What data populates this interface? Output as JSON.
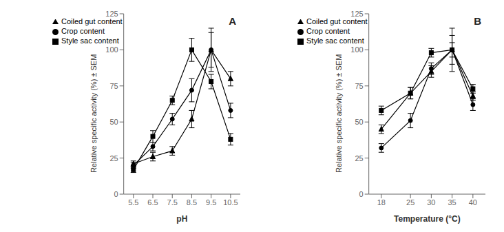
{
  "chart_data": [
    {
      "type": "line",
      "annotation": "A",
      "xlabel": "pH",
      "ylabel": "Relative specific activity (%) ± SEM",
      "x": [
        5.5,
        6.5,
        7.5,
        8.5,
        9.5,
        10.5
      ],
      "xlim": [
        5.0,
        11.0
      ],
      "xticks": [
        5.5,
        6.5,
        7.5,
        8.5,
        9.5,
        10.5
      ],
      "ylim": [
        0,
        125
      ],
      "yticks": [
        0,
        25,
        50,
        75,
        100,
        125
      ],
      "legend": "upper left",
      "grid": false,
      "color": "black",
      "series": [
        {
          "name": "Crop content",
          "marker": "circle",
          "values": [
            20,
            33,
            52,
            72,
            100,
            58
          ],
          "yerr": [
            2,
            3,
            4,
            8,
            12,
            5
          ]
        },
        {
          "name": "Style sac content",
          "marker": "square",
          "values": [
            17,
            40,
            65,
            100,
            78,
            38
          ],
          "yerr": [
            2,
            4,
            3,
            8,
            5,
            4
          ]
        },
        {
          "name": "Coiled gut content",
          "marker": "triangle",
          "values": [
            21,
            26,
            30,
            52,
            100,
            80
          ],
          "yerr": [
            2,
            3,
            3,
            6,
            15,
            5
          ]
        }
      ]
    },
    {
      "type": "line",
      "annotation": "B",
      "xlabel": "Temperature (°C)",
      "ylabel": "Relative specific activity (%) ± SEM",
      "x": [
        18,
        25,
        30,
        35,
        40
      ],
      "xlim": [
        15,
        43
      ],
      "xticks": [
        18,
        25,
        30,
        35,
        40
      ],
      "ylim": [
        0,
        125
      ],
      "yticks": [
        0,
        25,
        50,
        75,
        100,
        125
      ],
      "legend": "upper left",
      "grid": false,
      "color": "black",
      "series": [
        {
          "name": "Crop content",
          "marker": "circle",
          "values": [
            32,
            51,
            87,
            100,
            62
          ],
          "yerr": [
            3,
            5,
            4,
            5,
            4
          ]
        },
        {
          "name": "Style sac content",
          "marker": "square",
          "values": [
            58,
            70,
            98,
            100,
            73
          ],
          "yerr": [
            3,
            4,
            3,
            15,
            3
          ]
        },
        {
          "name": "Coiled gut content",
          "marker": "triangle",
          "values": [
            45,
            70,
            85,
            100,
            68
          ],
          "yerr": [
            3,
            4,
            4,
            10,
            3
          ]
        }
      ]
    }
  ]
}
